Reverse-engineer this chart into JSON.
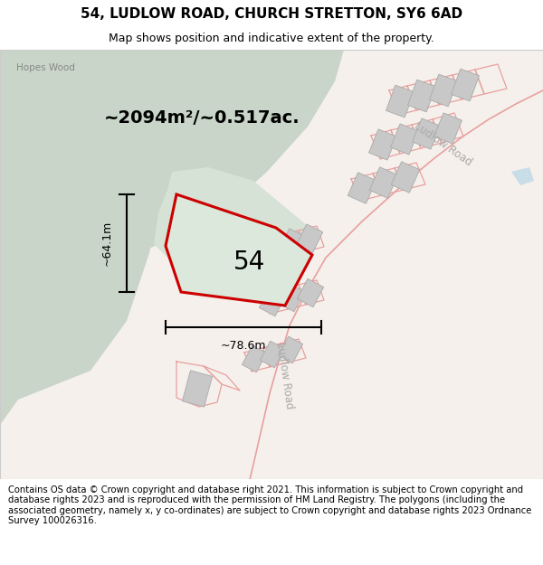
{
  "title": "54, LUDLOW ROAD, CHURCH STRETTON, SY6 6AD",
  "subtitle": "Map shows position and indicative extent of the property.",
  "footer": "Contains OS data © Crown copyright and database right 2021. This information is subject to Crown copyright and database rights 2023 and is reproduced with the permission of HM Land Registry. The polygons (including the associated geometry, namely x, y co-ordinates) are subject to Crown copyright and database rights 2023 Ordnance Survey 100026316.",
  "area_label": "~2094m²/~0.517ac.",
  "height_label": "~64.1m",
  "width_label": "~78.6m",
  "property_number": "54",
  "bg_green": "#c8d5c8",
  "bg_white": "#f5f0eb",
  "plot_fill": "#dbe5db",
  "red_color": "#cc0000",
  "pink_line": "#e8a0a0",
  "building_fill": "#c8c8c8",
  "building_edge": "#aaaaaa",
  "label_gray": "#999999",
  "title_fontsize": 11,
  "subtitle_fontsize": 9,
  "footer_fontsize": 7.2
}
